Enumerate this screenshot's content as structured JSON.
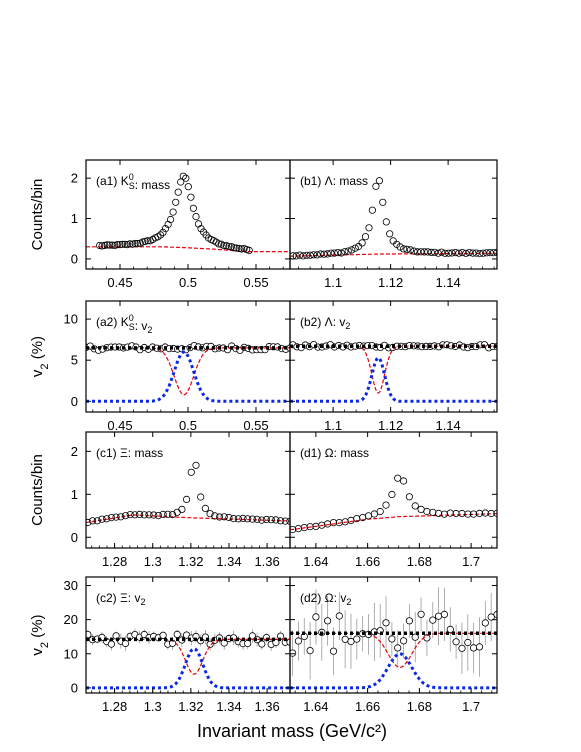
{
  "chart_data": {
    "type": "scatter",
    "xlabel": "Invariant mass (GeV/c²)",
    "colors": {
      "data": "#000000",
      "background_fit": "#e8000b",
      "signal_fit": "#0a28e6",
      "total_fit": "#000000",
      "errorbar": "#9a9a9a"
    },
    "rows": [
      {
        "ylabel": "Counts/bin",
        "yticks": [
          0,
          1,
          2
        ]
      },
      {
        "ylabel": "v2 (%)",
        "yticks": [
          0,
          5,
          10
        ]
      },
      {
        "ylabel": "Counts/bin",
        "yticks": [
          0,
          1,
          2
        ]
      },
      {
        "ylabel": "v2 (%)",
        "yticks": [
          0,
          10,
          20,
          30
        ]
      }
    ],
    "panels": [
      {
        "id": "a1",
        "label": "(a1) K_S^0: mass",
        "kind": "mass",
        "xlim": [
          0.425,
          0.575
        ],
        "ylim": [
          -0.25,
          2.45
        ],
        "xticks": [
          0.45,
          0.5,
          0.55
        ],
        "xticklabels": [
          "0.45",
          "0.5",
          "0.55"
        ],
        "peak": {
          "mu": 0.497,
          "sigma": 0.0055,
          "amp": 1.78,
          "bg_at_peak": 0.3
        },
        "data_range": [
          0.435,
          0.545
        ],
        "n_points": 60,
        "background": [
          [
            0.435,
            0.3
          ],
          [
            0.48,
            0.3
          ],
          [
            0.497,
            0.28
          ],
          [
            0.52,
            0.24
          ],
          [
            0.545,
            0.18
          ]
        ]
      },
      {
        "id": "b1",
        "label": "(b1) Λ: mass",
        "kind": "mass",
        "xlim": [
          1.085,
          1.157
        ],
        "ylim": [
          -0.25,
          2.45
        ],
        "xticks": [
          1.1,
          1.12,
          1.14
        ],
        "xticklabels": [
          "1.1",
          "1.12",
          "1.14"
        ],
        "peak": {
          "mu": 1.1157,
          "sigma": 0.0017,
          "amp": 1.86,
          "bg_at_peak": 0.12
        },
        "data_range": [
          1.086,
          1.157
        ],
        "n_points": 60,
        "background": [
          [
            1.086,
            0.07
          ],
          [
            1.1157,
            0.12
          ],
          [
            1.157,
            0.14
          ]
        ]
      },
      {
        "id": "a2",
        "label": "(a2) K_S^0: v2",
        "kind": "v2",
        "xlim": [
          0.425,
          0.575
        ],
        "ylim": [
          -1.3,
          12.2
        ],
        "xticks": [
          0.45,
          0.5,
          0.55
        ],
        "xticklabels": [
          "0.45",
          "0.5",
          "0.55"
        ],
        "peak": {
          "mu": 0.497,
          "sigma": 0.0055
        },
        "v2_total": 6.5,
        "v2_signal": 6.0,
        "v2_bg_min": 0.8,
        "data_range": [
          0.425,
          0.575
        ],
        "n_points": 50,
        "scatter": 0.3
      },
      {
        "id": "b2",
        "label": "(b2) Λ: v2",
        "kind": "v2",
        "xlim": [
          1.085,
          1.157
        ],
        "ylim": [
          -1.3,
          12.2
        ],
        "xticks": [
          1.1,
          1.12,
          1.14
        ],
        "xticklabels": [
          "1.1",
          "1.12",
          "1.14"
        ],
        "peak": {
          "mu": 1.1157,
          "sigma": 0.0017
        },
        "v2_total": 6.7,
        "v2_signal": 5.3,
        "v2_bg_min": 1.0,
        "data_range": [
          1.086,
          1.157
        ],
        "n_points": 50,
        "scatter": 0.2
      },
      {
        "id": "c1",
        "label": "(c1) Ξ: mass",
        "kind": "mass",
        "xlim": [
          1.265,
          1.372
        ],
        "ylim": [
          -0.25,
          2.45
        ],
        "xticks": [
          1.28,
          1.3,
          1.32,
          1.34,
          1.36
        ],
        "xticklabels": [
          "1.28",
          "1.3",
          "1.32",
          "1.34",
          "1.36"
        ],
        "peak": {
          "mu": 1.3217,
          "sigma": 0.0018,
          "amp": 1.4,
          "bg_at_peak": 0.45
        },
        "data_range": [
          1.266,
          1.372
        ],
        "n_points": 44,
        "background": [
          [
            1.266,
            0.35
          ],
          [
            1.29,
            0.52
          ],
          [
            1.3217,
            0.45
          ],
          [
            1.372,
            0.38
          ]
        ]
      },
      {
        "id": "d1",
        "label": "(d1) Ω: mass",
        "kind": "mass",
        "xlim": [
          1.63,
          1.71
        ],
        "ylim": [
          -0.25,
          2.45
        ],
        "xticks": [
          1.64,
          1.66,
          1.68,
          1.7
        ],
        "xticklabels": [
          "1.64",
          "1.66",
          "1.68",
          "1.7"
        ],
        "peak": {
          "mu": 1.6725,
          "sigma": 0.0025,
          "amp": 0.95,
          "bg_at_peak": 0.48
        },
        "data_range": [
          1.631,
          1.71
        ],
        "n_points": 36,
        "background": [
          [
            1.631,
            0.18
          ],
          [
            1.66,
            0.42
          ],
          [
            1.6725,
            0.48
          ],
          [
            1.71,
            0.55
          ]
        ]
      },
      {
        "id": "c2",
        "label": "(c2) Ξ: v2",
        "kind": "v2",
        "xlim": [
          1.265,
          1.372
        ],
        "ylim": [
          -1.5,
          32.5
        ],
        "xticks": [
          1.28,
          1.3,
          1.32,
          1.34,
          1.36
        ],
        "xticklabels": [
          "1.28",
          "1.3",
          "1.32",
          "1.34",
          "1.36"
        ],
        "peak": {
          "mu": 1.3217,
          "sigma": 0.0035
        },
        "v2_total": 14.2,
        "v2_signal": 11.5,
        "v2_bg_min": 4.0,
        "data_range": [
          1.266,
          1.372
        ],
        "n_points": 44,
        "scatter": 1.5,
        "errorbar": 2.0
      },
      {
        "id": "d2",
        "label": "(d2) Ω: v2",
        "kind": "v2",
        "xlim": [
          1.63,
          1.71
        ],
        "ylim": [
          -1.5,
          32.5
        ],
        "xticks": [
          1.64,
          1.66,
          1.68,
          1.7
        ],
        "xticklabels": [
          "1.64",
          "1.66",
          "1.68",
          "1.7"
        ],
        "peak": {
          "mu": 1.6725,
          "sigma": 0.0035
        },
        "v2_total": 16.0,
        "v2_signal": 10.0,
        "v2_bg_min": 6.0,
        "data_range": [
          1.631,
          1.71
        ],
        "n_points": 36,
        "scatter": 6.0,
        "errorbar": 8.0
      }
    ]
  }
}
